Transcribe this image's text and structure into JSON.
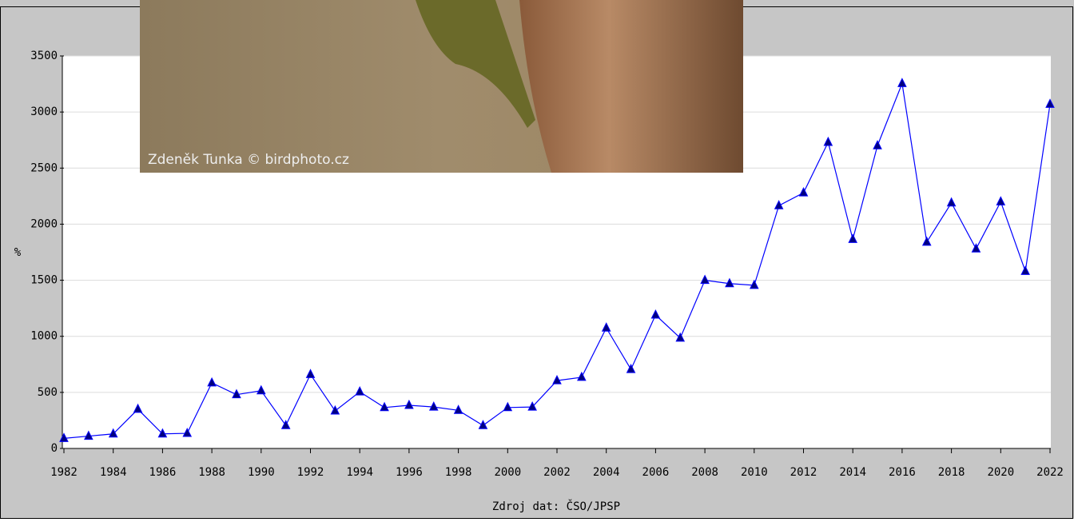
{
  "chart_data": {
    "type": "line",
    "ylabel": "%",
    "xlabel": "Zdroj dat: ČSO/JPSP",
    "photo_credit": "Zdeněk Tunka © birdphoto.cz",
    "x": [
      1982,
      1983,
      1984,
      1985,
      1986,
      1987,
      1988,
      1989,
      1990,
      1991,
      1992,
      1993,
      1994,
      1995,
      1996,
      1997,
      1998,
      1999,
      2000,
      2001,
      2002,
      2003,
      2004,
      2005,
      2006,
      2007,
      2008,
      2009,
      2010,
      2011,
      2012,
      2013,
      2014,
      2015,
      2016,
      2017,
      2018,
      2019,
      2020,
      2021,
      2022
    ],
    "values": [
      90,
      110,
      130,
      350,
      130,
      135,
      585,
      480,
      515,
      205,
      660,
      335,
      505,
      365,
      385,
      370,
      340,
      205,
      365,
      370,
      605,
      635,
      1075,
      705,
      1190,
      985,
      1500,
      1470,
      1455,
      2165,
      2280,
      2730,
      1865,
      2700,
      3255,
      1840,
      2190,
      1780,
      2200,
      1580,
      3070
    ],
    "color": "#0000ff",
    "marker_color": "#000080",
    "xlim": [
      1982,
      2022
    ],
    "xticks": [
      1982,
      1984,
      1986,
      1988,
      1990,
      1992,
      1994,
      1996,
      1998,
      2000,
      2002,
      2004,
      2006,
      2008,
      2010,
      2012,
      2014,
      2016,
      2018,
      2020,
      2022
    ],
    "ylim": [
      0,
      3500
    ],
    "yticks": [
      0,
      500,
      1000,
      1500,
      2000,
      2500,
      3000,
      3500
    ],
    "grid": true
  }
}
